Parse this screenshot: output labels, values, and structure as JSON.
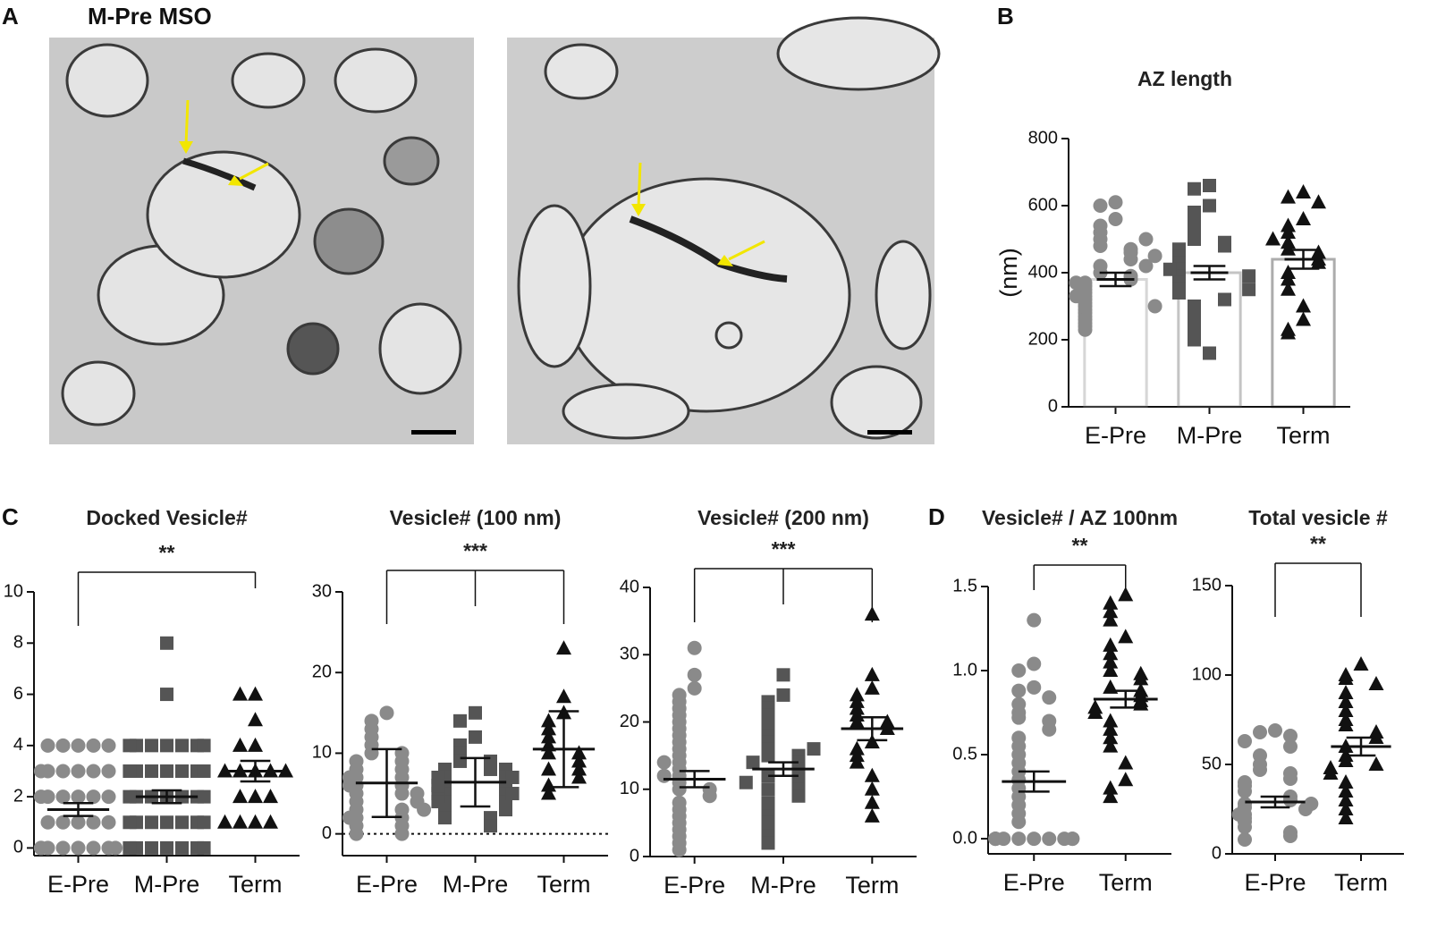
{
  "panel_labels": [
    "A",
    "B",
    "C",
    "D"
  ],
  "panel_a": {
    "title": "M-Pre MSO"
  },
  "chart_data": [
    {
      "type": "bar",
      "title": "AZ length",
      "ylabel": "(nm)",
      "categories": [
        "E-Pre",
        "M-Pre",
        "Term"
      ],
      "values": [
        380,
        400,
        440
      ],
      "errors": [
        20,
        20,
        28
      ],
      "points": [
        [
          610,
          600,
          560,
          540,
          520,
          500,
          480,
          470,
          460,
          440,
          420,
          400,
          390,
          380,
          370,
          360,
          350,
          340,
          330,
          320,
          310,
          300,
          290,
          280,
          270,
          260,
          250,
          240,
          230,
          370,
          330,
          300,
          420,
          450,
          500
        ],
        [
          660,
          650,
          600,
          580,
          560,
          540,
          520,
          500,
          490,
          480,
          470,
          460,
          450,
          440,
          430,
          420,
          410,
          400,
          390,
          380,
          370,
          360,
          350,
          340,
          320,
          300,
          280,
          260,
          240,
          220,
          200,
          160,
          410,
          390,
          350
        ],
        [
          640,
          625,
          610,
          560,
          540,
          520,
          490,
          470,
          460,
          440,
          430,
          400,
          380,
          350,
          300,
          260,
          230,
          220,
          500
        ]
      ],
      "colors": [
        "#8a8a8a",
        "#555555",
        "#111111"
      ],
      "markers": [
        "circle",
        "square",
        "triangle"
      ],
      "ylim": [
        0,
        800
      ],
      "yticks": [
        0,
        200,
        400,
        600,
        800
      ]
    },
    {
      "type": "scatter",
      "title": "Docked Vesicle#",
      "annotation": "**",
      "categories": [
        "E-Pre",
        "M-Pre",
        "Term"
      ],
      "values": [
        1.5,
        2,
        3
      ],
      "errors": [
        0.25,
        0.25,
        0.4
      ],
      "points": [
        [
          4,
          4,
          4,
          4,
          4,
          3,
          3,
          3,
          3,
          3,
          3,
          2,
          2,
          2,
          2,
          2,
          2,
          1,
          1,
          1,
          1,
          1,
          0,
          0,
          0,
          0,
          0,
          0,
          0,
          0
        ],
        [
          8,
          6,
          4,
          4,
          4,
          4,
          4,
          4,
          4,
          3,
          3,
          3,
          3,
          3,
          3,
          3,
          2,
          2,
          2,
          2,
          2,
          2,
          2,
          1,
          1,
          1,
          1,
          1,
          1,
          1,
          0,
          0,
          0,
          0,
          0,
          0,
          0
        ],
        [
          6,
          6,
          5,
          4,
          4,
          3,
          3,
          3,
          3,
          3,
          2,
          2,
          2,
          1,
          1,
          1,
          1
        ]
      ],
      "colors": [
        "#8a8a8a",
        "#555555",
        "#111111"
      ],
      "markers": [
        "circle",
        "square",
        "triangle"
      ],
      "ylim": [
        -0.3,
        10
      ],
      "yticks": [
        0,
        2,
        4,
        6,
        8,
        10
      ]
    },
    {
      "type": "scatter",
      "title": "Vesicle# (100 nm)",
      "annotation": "***",
      "categories": [
        "E-Pre",
        "M-Pre",
        "Term"
      ],
      "values": [
        6.3,
        6.4,
        10.5
      ],
      "errors": [
        4.2,
        3,
        4.7
      ],
      "zero_line": true,
      "points": [
        [
          15,
          14,
          13,
          12,
          11,
          10,
          10,
          9,
          9,
          8,
          8,
          7,
          7,
          6,
          6,
          5,
          5,
          5,
          4,
          4,
          3,
          3,
          2,
          2,
          1,
          1,
          0,
          0,
          6,
          7,
          3,
          2
        ],
        [
          15,
          14,
          12,
          11,
          10,
          9,
          9,
          8,
          8,
          8,
          7,
          7,
          7,
          6,
          6,
          6,
          5,
          5,
          5,
          4,
          4,
          4,
          3,
          3,
          2,
          2,
          1,
          6,
          7,
          5
        ],
        [
          23,
          17,
          15,
          14,
          13,
          12,
          11,
          10,
          10,
          9,
          8,
          8,
          7,
          6,
          5
        ]
      ],
      "colors": [
        "#8a8a8a",
        "#555555",
        "#111111"
      ],
      "markers": [
        "circle",
        "square",
        "triangle"
      ],
      "ylim": [
        -2.7,
        30
      ],
      "yticks": [
        0,
        10,
        20,
        30
      ]
    },
    {
      "type": "scatter",
      "title": "Vesicle# (200 nm)",
      "annotation": "***",
      "categories": [
        "E-Pre",
        "M-Pre",
        "Term"
      ],
      "values": [
        11.5,
        13,
        19
      ],
      "errors": [
        1.2,
        1,
        1.7
      ],
      "points": [
        [
          31,
          27,
          25,
          24,
          23,
          22,
          21,
          20,
          19,
          18,
          17,
          16,
          15,
          14,
          13,
          12,
          11,
          10,
          10,
          9,
          8,
          7,
          6,
          5,
          4,
          3,
          2,
          1,
          14,
          12
        ],
        [
          27,
          24,
          23,
          22,
          21,
          20,
          19,
          18,
          17,
          16,
          15,
          15,
          14,
          14,
          13,
          12,
          12,
          11,
          10,
          10,
          9,
          8,
          7,
          6,
          5,
          4,
          3,
          2,
          16,
          11
        ],
        [
          36,
          27,
          25,
          24,
          23,
          22,
          21,
          20,
          20,
          19,
          17,
          16,
          15,
          14,
          12,
          10,
          8,
          6
        ]
      ],
      "colors": [
        "#8a8a8a",
        "#555555",
        "#111111"
      ],
      "markers": [
        "circle",
        "square",
        "triangle"
      ],
      "ylim": [
        0,
        40
      ],
      "yticks": [
        0,
        10,
        20,
        30,
        40
      ]
    },
    {
      "type": "scatter",
      "title": "Vesicle# / AZ 100nm",
      "annotation": "**",
      "categories": [
        "E-Pre",
        "Term"
      ],
      "values": [
        0.34,
        0.83
      ],
      "errors": [
        0.06,
        0.05
      ],
      "points": [
        [
          1.3,
          1.04,
          1.0,
          0.9,
          0.88,
          0.84,
          0.8,
          0.75,
          0.72,
          0.7,
          0.65,
          0.6,
          0.55,
          0.5,
          0.45,
          0.4,
          0.35,
          0.3,
          0.25,
          0.2,
          0.15,
          0.1,
          0,
          0,
          0,
          0,
          0,
          0,
          0,
          0,
          0,
          0
        ],
        [
          1.45,
          1.4,
          1.35,
          1.3,
          1.2,
          1.15,
          1.1,
          1.05,
          1.0,
          0.98,
          0.95,
          0.9,
          0.88,
          0.85,
          0.82,
          0.8,
          0.78,
          0.75,
          0.7,
          0.65,
          0.6,
          0.55,
          0.45,
          0.35,
          0.3,
          0.25
        ]
      ],
      "colors": [
        "#8a8a8a",
        "#111111"
      ],
      "markers": [
        "circle",
        "triangle"
      ],
      "ylim": [
        -0.09,
        1.5
      ],
      "yticks": [
        {
          "value": 0,
          "label": "0.0"
        },
        0.5,
        {
          "value": 1,
          "label": "1.0"
        },
        1.5
      ]
    },
    {
      "type": "scatter",
      "title": "Total vesicle #",
      "annotation": "**",
      "categories": [
        "E-Pre",
        "Term"
      ],
      "values": [
        29,
        60
      ],
      "errors": [
        3,
        5
      ],
      "points": [
        [
          69,
          68,
          66,
          63,
          60,
          55,
          50,
          47,
          45,
          42,
          40,
          38,
          35,
          32,
          30,
          28,
          26,
          25,
          22,
          20,
          18,
          15,
          12,
          10,
          8,
          22,
          28
        ],
        [
          106,
          100,
          98,
          95,
          90,
          85,
          80,
          75,
          72,
          68,
          65,
          60,
          55,
          52,
          50,
          48,
          45,
          40,
          35,
          30,
          25,
          20
        ]
      ],
      "colors": [
        "#8a8a8a",
        "#111111"
      ],
      "markers": [
        "circle",
        "triangle"
      ],
      "ylim": [
        0,
        150
      ],
      "yticks": [
        0,
        50,
        100,
        150
      ]
    }
  ]
}
